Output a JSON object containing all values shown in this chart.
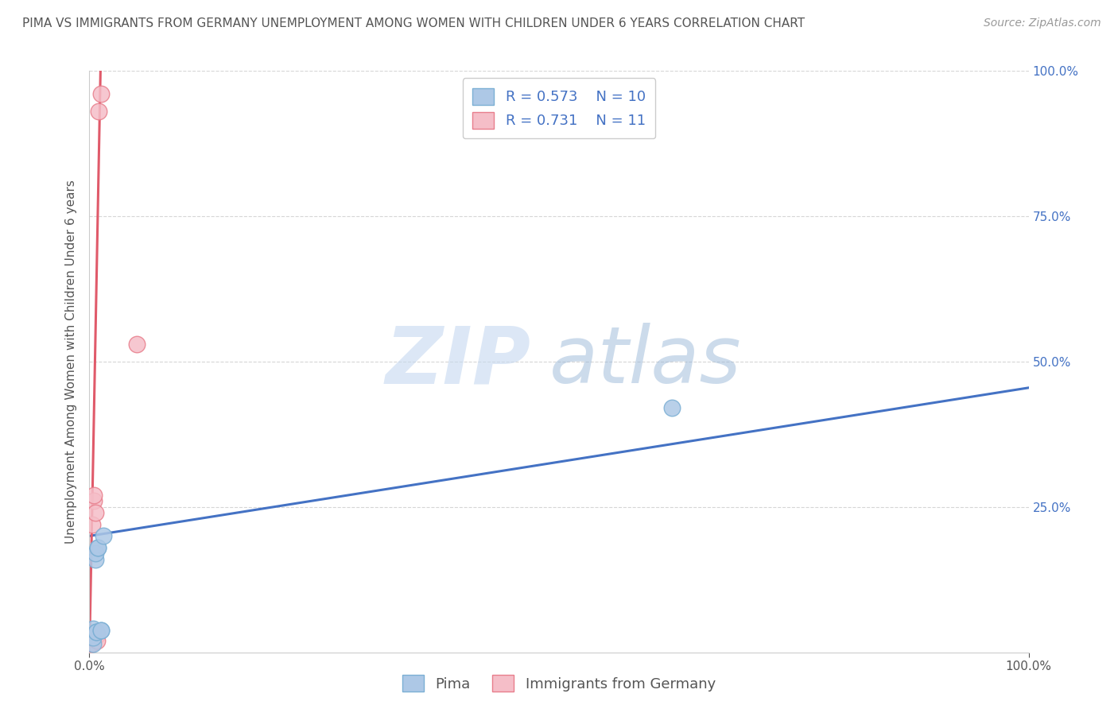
{
  "title": "PIMA VS IMMIGRANTS FROM GERMANY UNEMPLOYMENT AMONG WOMEN WITH CHILDREN UNDER 6 YEARS CORRELATION CHART",
  "source": "Source: ZipAtlas.com",
  "ylabel": "Unemployment Among Women with Children Under 6 years",
  "xlim": [
    0,
    1
  ],
  "ylim": [
    0,
    1
  ],
  "xtick_labels": [
    "0.0%",
    "100.0%"
  ],
  "xtick_positions": [
    0,
    1
  ],
  "ytick_positions": [
    0.25,
    0.5,
    0.75,
    1.0
  ],
  "right_ytick_labels": [
    "25.0%",
    "50.0%",
    "75.0%",
    "100.0%"
  ],
  "pima_color": "#adc8e6",
  "pima_edge_color": "#7bafd4",
  "germany_color": "#f5bec8",
  "germany_edge_color": "#e87e8c",
  "pima_scatter_x": [
    0.004,
    0.004,
    0.004,
    0.006,
    0.006,
    0.007,
    0.007,
    0.009,
    0.009,
    0.012,
    0.012,
    0.015,
    0.62
  ],
  "pima_scatter_y": [
    0.015,
    0.025,
    0.04,
    0.16,
    0.17,
    0.035,
    0.035,
    0.18,
    0.18,
    0.038,
    0.038,
    0.2,
    0.42
  ],
  "germany_scatter_x": [
    0.002,
    0.002,
    0.003,
    0.003,
    0.005,
    0.005,
    0.006,
    0.007,
    0.008,
    0.008,
    0.01,
    0.012,
    0.05
  ],
  "germany_scatter_y": [
    0.015,
    0.025,
    0.03,
    0.22,
    0.26,
    0.27,
    0.24,
    0.03,
    0.03,
    0.02,
    0.93,
    0.96,
    0.53
  ],
  "pima_line_x": [
    0,
    1.0
  ],
  "pima_line_y": [
    0.2,
    0.455
  ],
  "germany_line_x": [
    0.0,
    0.012
  ],
  "germany_line_y": [
    0.0,
    1.02
  ],
  "pima_R": "0.573",
  "pima_N": "10",
  "germany_R": "0.731",
  "germany_N": "11",
  "legend_labels": [
    "Pima",
    "Immigrants from Germany"
  ],
  "watermark_zip": "ZIP",
  "watermark_atlas": "atlas",
  "background_color": "#ffffff",
  "grid_color": "#cccccc",
  "title_fontsize": 11,
  "axis_label_fontsize": 11,
  "tick_fontsize": 11,
  "legend_fontsize": 13,
  "source_fontsize": 10,
  "pima_line_color": "#4472c4",
  "germany_line_color": "#e05a6a",
  "scatter_size": 220
}
